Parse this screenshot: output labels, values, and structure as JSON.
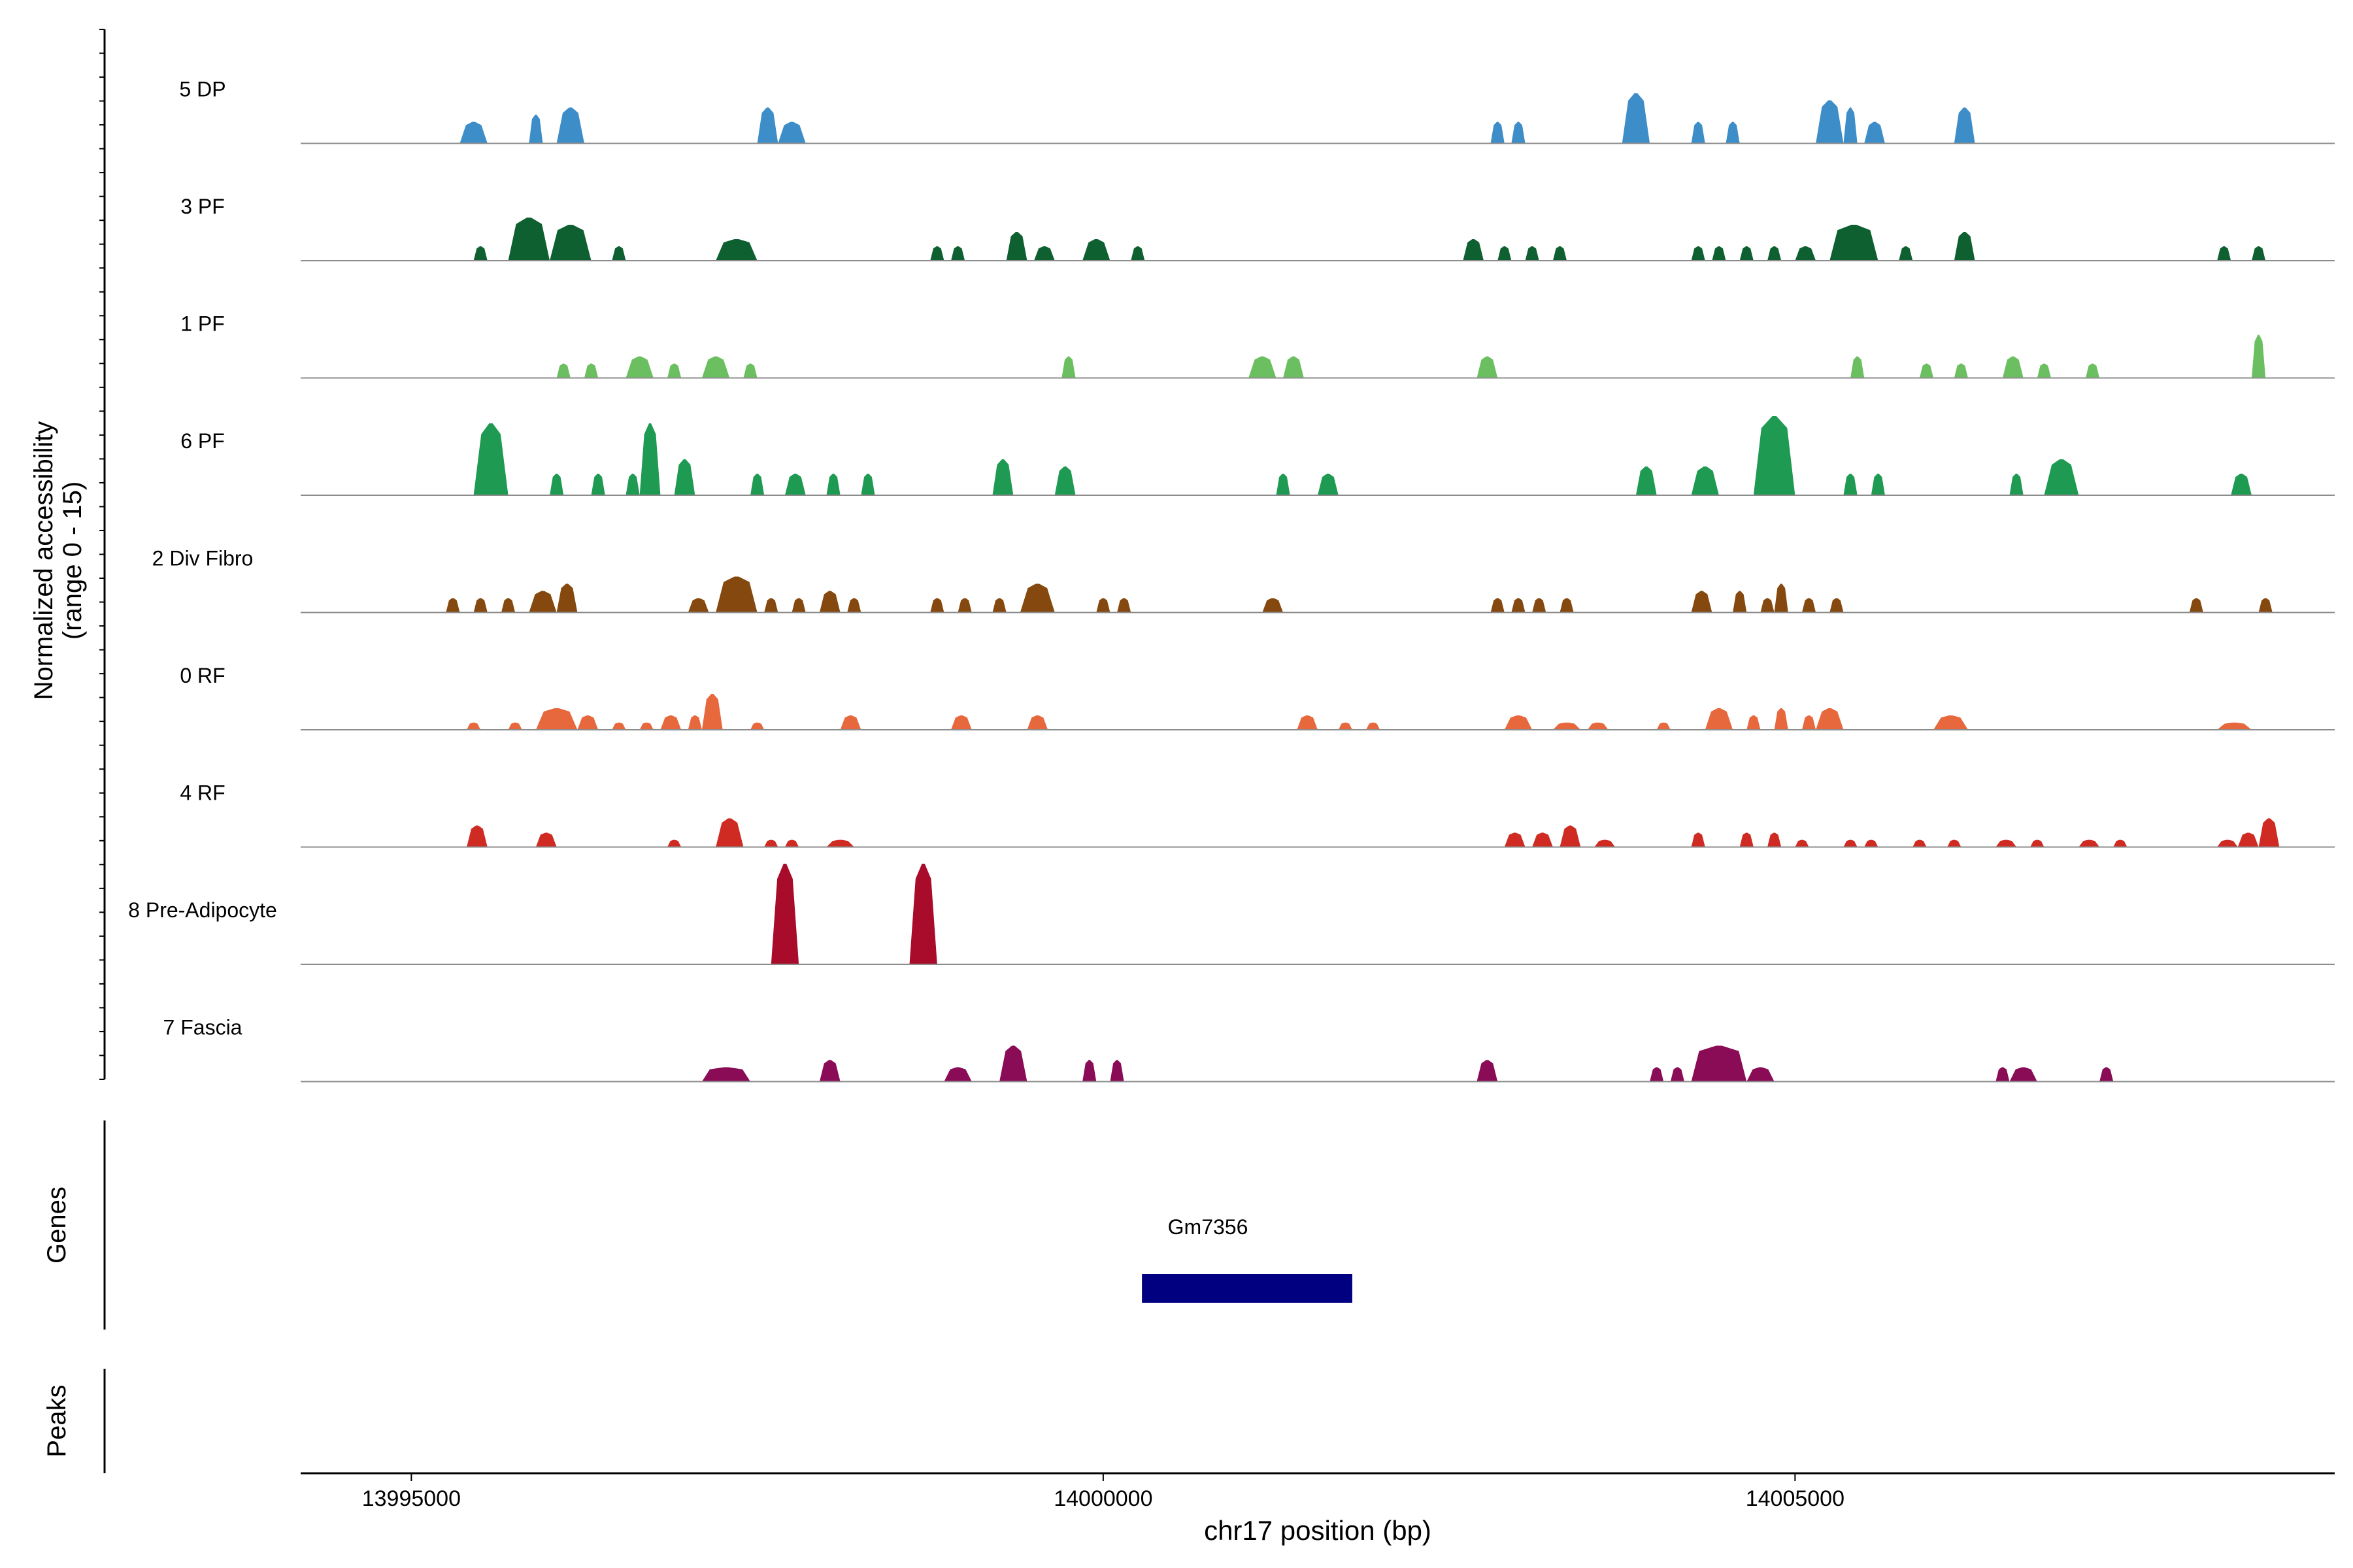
{
  "chart_data": {
    "type": "area",
    "title": "",
    "ylabel": "Normalized accessibility",
    "ylabel_range": "(range 0 - 15)",
    "xlabel": "chr17 position (bp)",
    "xlim": [
      13994200,
      14008900
    ],
    "ylim": [
      0,
      15
    ],
    "x_ticks": [
      13995000,
      14000000,
      14005000
    ],
    "x_tick_labels": [
      "13995000",
      "14000000",
      "14005000"
    ],
    "tracks_label_genes": "Genes",
    "tracks_label_peaks": "Peaks",
    "series": [
      {
        "name": "5 DP",
        "color": "#3d8ec8",
        "peaks": [
          [
            13995350,
            13995550,
            3
          ],
          [
            13995850,
            13995950,
            4
          ],
          [
            13996050,
            13996250,
            5
          ],
          [
            13997500,
            13997650,
            5
          ],
          [
            13997650,
            13997850,
            3
          ],
          [
            14002800,
            14002900,
            3
          ],
          [
            14002950,
            14003050,
            3
          ],
          [
            14003750,
            14003950,
            7
          ],
          [
            14004250,
            14004350,
            3
          ],
          [
            14004500,
            14004600,
            3
          ],
          [
            14005150,
            14005350,
            6
          ],
          [
            14005350,
            14005450,
            5
          ],
          [
            14005500,
            14005650,
            3
          ],
          [
            14006150,
            14006300,
            5
          ]
        ]
      },
      {
        "name": "3 PF",
        "color": "#0e6031",
        "peaks": [
          [
            13995450,
            13995550,
            2
          ],
          [
            13995700,
            13996000,
            6
          ],
          [
            13996000,
            13996300,
            5
          ],
          [
            13996450,
            13996550,
            2
          ],
          [
            13997200,
            13997500,
            3
          ],
          [
            13998750,
            13998850,
            2
          ],
          [
            13998900,
            13999000,
            2
          ],
          [
            13999300,
            13999450,
            4
          ],
          [
            13999500,
            13999650,
            2
          ],
          [
            13999850,
            14000050,
            3
          ],
          [
            14000200,
            14000300,
            2
          ],
          [
            14002600,
            14002750,
            3
          ],
          [
            14002850,
            14002950,
            2
          ],
          [
            14003050,
            14003150,
            2
          ],
          [
            14003250,
            14003350,
            2
          ],
          [
            14004250,
            14004350,
            2
          ],
          [
            14004400,
            14004500,
            2
          ],
          [
            14004600,
            14004700,
            2
          ],
          [
            14004800,
            14004900,
            2
          ],
          [
            14005000,
            14005150,
            2
          ],
          [
            14005250,
            14005600,
            5
          ],
          [
            14005750,
            14005850,
            2
          ],
          [
            14006150,
            14006300,
            4
          ],
          [
            14008050,
            14008150,
            2
          ],
          [
            14008300,
            14008400,
            2
          ]
        ]
      },
      {
        "name": "1 PF",
        "color": "#6bbf60",
        "peaks": [
          [
            13996050,
            13996150,
            2
          ],
          [
            13996250,
            13996350,
            2
          ],
          [
            13996550,
            13996750,
            3
          ],
          [
            13996850,
            13996950,
            2
          ],
          [
            13997100,
            13997300,
            3
          ],
          [
            13997400,
            13997500,
            2
          ],
          [
            13999700,
            13999800,
            3
          ],
          [
            14001050,
            14001250,
            3
          ],
          [
            14001300,
            14001450,
            3
          ],
          [
            14002700,
            14002850,
            3
          ],
          [
            14005400,
            14005500,
            3
          ],
          [
            14005900,
            14006000,
            2
          ],
          [
            14006150,
            14006250,
            2
          ],
          [
            14006500,
            14006650,
            3
          ],
          [
            14006750,
            14006850,
            2
          ],
          [
            14007100,
            14007200,
            2
          ],
          [
            14008300,
            14008400,
            6
          ]
        ]
      },
      {
        "name": "6 PF",
        "color": "#1e9a52",
        "peaks": [
          [
            13995450,
            13995700,
            10
          ],
          [
            13996000,
            13996100,
            3
          ],
          [
            13996300,
            13996400,
            3
          ],
          [
            13996550,
            13996650,
            3
          ],
          [
            13996650,
            13996800,
            10
          ],
          [
            13996900,
            13997050,
            5
          ],
          [
            13997450,
            13997550,
            3
          ],
          [
            13997700,
            13997850,
            3
          ],
          [
            13998000,
            13998100,
            3
          ],
          [
            13998250,
            13998350,
            3
          ],
          [
            13999200,
            13999350,
            5
          ],
          [
            13999650,
            13999800,
            4
          ],
          [
            14001250,
            14001350,
            3
          ],
          [
            14001550,
            14001700,
            3
          ],
          [
            14003850,
            14004000,
            4
          ],
          [
            14004250,
            14004450,
            4
          ],
          [
            14004700,
            14005000,
            11
          ],
          [
            14005350,
            14005450,
            3
          ],
          [
            14005550,
            14005650,
            3
          ],
          [
            14006550,
            14006650,
            3
          ],
          [
            14006800,
            14007050,
            5
          ],
          [
            14008150,
            14008300,
            3
          ]
        ]
      },
      {
        "name": "2 Div Fibro",
        "color": "#85480e",
        "peaks": [
          [
            13995250,
            13995350,
            2
          ],
          [
            13995450,
            13995550,
            2
          ],
          [
            13995650,
            13995750,
            2
          ],
          [
            13995850,
            13996050,
            3
          ],
          [
            13996050,
            13996200,
            4
          ],
          [
            13997000,
            13997150,
            2
          ],
          [
            13997200,
            13997500,
            5
          ],
          [
            13997550,
            13997650,
            2
          ],
          [
            13997750,
            13997850,
            2
          ],
          [
            13997950,
            13998100,
            3
          ],
          [
            13998150,
            13998250,
            2
          ],
          [
            13998750,
            13998850,
            2
          ],
          [
            13998950,
            13999050,
            2
          ],
          [
            13999200,
            13999300,
            2
          ],
          [
            13999400,
            13999650,
            4
          ],
          [
            13999950,
            14000050,
            2
          ],
          [
            14000100,
            14000200,
            2
          ],
          [
            14001150,
            14001300,
            2
          ],
          [
            14002800,
            14002900,
            2
          ],
          [
            14002950,
            14003050,
            2
          ],
          [
            14003100,
            14003200,
            2
          ],
          [
            14003300,
            14003400,
            2
          ],
          [
            14004250,
            14004400,
            3
          ],
          [
            14004550,
            14004650,
            3
          ],
          [
            14004750,
            14004850,
            2
          ],
          [
            14004850,
            14004950,
            4
          ],
          [
            14005050,
            14005150,
            2
          ],
          [
            14005250,
            14005350,
            2
          ],
          [
            14007850,
            14007950,
            2
          ],
          [
            14008350,
            14008450,
            2
          ]
        ]
      },
      {
        "name": "0 RF",
        "color": "#e8683d",
        "peaks": [
          [
            13995400,
            13995500,
            1
          ],
          [
            13995700,
            13995800,
            1
          ],
          [
            13995900,
            13996200,
            3
          ],
          [
            13996200,
            13996350,
            2
          ],
          [
            13996450,
            13996550,
            1
          ],
          [
            13996650,
            13996750,
            1
          ],
          [
            13996800,
            13996950,
            2
          ],
          [
            13997000,
            13997100,
            2
          ],
          [
            13997100,
            13997250,
            5
          ],
          [
            13997450,
            13997550,
            1
          ],
          [
            13998100,
            13998250,
            2
          ],
          [
            13998900,
            13999050,
            2
          ],
          [
            13999450,
            13999600,
            2
          ],
          [
            14001400,
            14001550,
            2
          ],
          [
            14001700,
            14001800,
            1
          ],
          [
            14001900,
            14002000,
            1
          ],
          [
            14002900,
            14003100,
            2
          ],
          [
            14003250,
            14003450,
            1
          ],
          [
            14003500,
            14003650,
            1
          ],
          [
            14004000,
            14004100,
            1
          ],
          [
            14004350,
            14004550,
            3
          ],
          [
            14004650,
            14004750,
            2
          ],
          [
            14004850,
            14004950,
            3
          ],
          [
            14005050,
            14005150,
            2
          ],
          [
            14005150,
            14005350,
            3
          ],
          [
            14006000,
            14006250,
            2
          ],
          [
            14008050,
            14008300,
            1
          ]
        ]
      },
      {
        "name": "4 RF",
        "color": "#cf2b23",
        "peaks": [
          [
            13995400,
            13995550,
            3
          ],
          [
            13995900,
            13996050,
            2
          ],
          [
            13996850,
            13996950,
            1
          ],
          [
            13997200,
            13997400,
            4
          ],
          [
            13997550,
            13997650,
            1
          ],
          [
            13997700,
            13997800,
            1
          ],
          [
            13998000,
            13998200,
            1
          ],
          [
            14002900,
            14003050,
            2
          ],
          [
            14003100,
            14003250,
            2
          ],
          [
            14003300,
            14003450,
            3
          ],
          [
            14003550,
            14003700,
            1
          ],
          [
            14004250,
            14004350,
            2
          ],
          [
            14004600,
            14004700,
            2
          ],
          [
            14004800,
            14004900,
            2
          ],
          [
            14005000,
            14005100,
            1
          ],
          [
            14005350,
            14005450,
            1
          ],
          [
            14005500,
            14005600,
            1
          ],
          [
            14005850,
            14005950,
            1
          ],
          [
            14006100,
            14006200,
            1
          ],
          [
            14006450,
            14006600,
            1
          ],
          [
            14006700,
            14006800,
            1
          ],
          [
            14007050,
            14007200,
            1
          ],
          [
            14007300,
            14007400,
            1
          ],
          [
            14008050,
            14008200,
            1
          ],
          [
            14008200,
            14008350,
            2
          ],
          [
            14008350,
            14008500,
            4
          ]
        ]
      },
      {
        "name": "8 Pre-Adipocyte",
        "color": "#a90b2a",
        "peaks": [
          [
            13997600,
            13997800,
            14
          ],
          [
            13998600,
            13998800,
            14
          ]
        ]
      },
      {
        "name": "7 Fascia",
        "color": "#8a0b56",
        "peaks": [
          [
            13997100,
            13997450,
            2
          ],
          [
            13997950,
            13998100,
            3
          ],
          [
            13998850,
            13999050,
            2
          ],
          [
            13999250,
            13999450,
            5
          ],
          [
            13999850,
            13999950,
            3
          ],
          [
            14000050,
            14000150,
            3
          ],
          [
            14002700,
            14002850,
            3
          ],
          [
            14003950,
            14004050,
            2
          ],
          [
            14004100,
            14004200,
            2
          ],
          [
            14004250,
            14004650,
            5
          ],
          [
            14004650,
            14004850,
            2
          ],
          [
            14006450,
            14006550,
            2
          ],
          [
            14006550,
            14006750,
            2
          ],
          [
            14007200,
            14007300,
            2
          ]
        ]
      }
    ],
    "genes": [
      {
        "name": "Gm7356",
        "start": 14000280,
        "end": 14001800,
        "color": "#000080"
      }
    ],
    "peaks_track": []
  }
}
